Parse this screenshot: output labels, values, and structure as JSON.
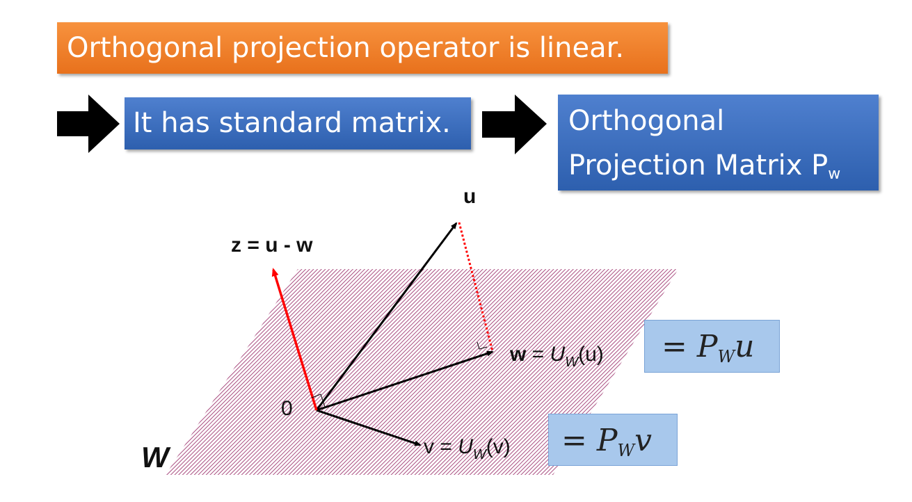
{
  "title_box": {
    "text": "Orthogonal projection operator is linear."
  },
  "step1_box": {
    "text": "It has standard matrix."
  },
  "step2_box": {
    "line1": "Orthogonal",
    "line2": "Projection Matrix P",
    "line2_sub": "w"
  },
  "diagram": {
    "plane_label": "W",
    "origin_label": "0",
    "u_label": "u",
    "z_label": "z = u - w",
    "w_label": {
      "bold": "w",
      "eq": " = ",
      "func": "U",
      "sub": "W",
      "arg": "(u)"
    },
    "v_label": {
      "bold": "v",
      "eq": " = ",
      "func": "U",
      "sub": "W",
      "arg": "(v)"
    }
  },
  "pw_u_box": {
    "eq": "= ",
    "P": "P",
    "sub": "W",
    "var": "u"
  },
  "pw_v_box": {
    "eq": "= ",
    "P": "P",
    "sub": "W",
    "var": "v"
  },
  "colors": {
    "orange": "#ed7d31",
    "blue": "#4472c4",
    "light_blue": "#a8c8ec",
    "red": "#ff0000",
    "plane": "#b07a9a"
  }
}
